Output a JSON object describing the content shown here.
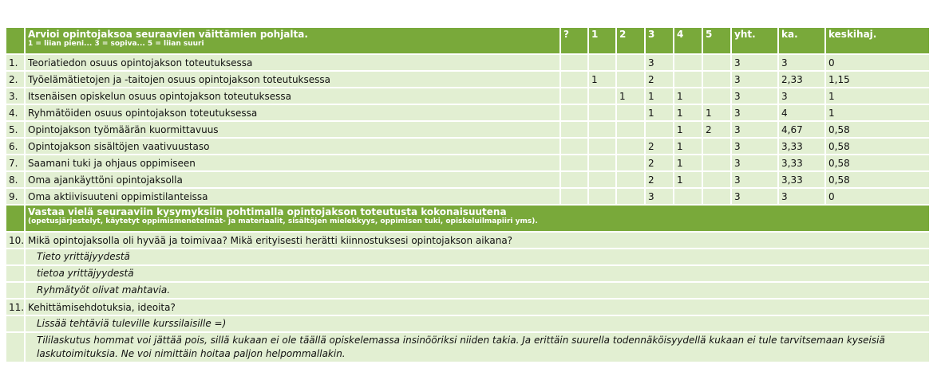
{
  "section1": {
    "title": "Arvioi opintojaksoa seuraavien väittämien pohjalta.",
    "subtitle": "1 = liian pieni... 3 = sopiva... 5 = liian suuri",
    "columns": [
      "?",
      "1",
      "2",
      "3",
      "4",
      "5",
      "yht.",
      "ka.",
      "keskihaj."
    ],
    "rows": [
      {
        "num": "1.",
        "text": "Teoriatiedon osuus opintojakson toteutuksessa",
        "cells": [
          null,
          null,
          null,
          "3",
          null,
          null,
          "3",
          "3",
          "0"
        ]
      },
      {
        "num": "2.",
        "text": "Työelämätietojen ja -taitojen osuus opintojakson toteutuksessa",
        "cells": [
          null,
          "1",
          null,
          "2",
          null,
          null,
          "3",
          "2,33",
          "1,15"
        ]
      },
      {
        "num": "3.",
        "text": "Itsenäisen opiskelun osuus opintojakson toteutuksessa",
        "cells": [
          null,
          null,
          "1",
          "1",
          "1",
          null,
          "3",
          "3",
          "1"
        ]
      },
      {
        "num": "4.",
        "text": "Ryhmätöiden osuus opintojakson toteutuksessa",
        "cells": [
          null,
          null,
          null,
          "1",
          "1",
          "1",
          "3",
          "4",
          "1"
        ]
      },
      {
        "num": "5.",
        "text": "Opintojakson työmäärän kuormittavuus",
        "cells": [
          null,
          null,
          null,
          null,
          "1",
          "2",
          "3",
          "4,67",
          "0,58"
        ]
      },
      {
        "num": "6.",
        "text": "Opintojakson sisältöjen vaativuustaso",
        "cells": [
          null,
          null,
          null,
          "2",
          "1",
          null,
          "3",
          "3,33",
          "0,58"
        ]
      },
      {
        "num": "7.",
        "text": "Saamani tuki ja ohjaus oppimiseen",
        "cells": [
          null,
          null,
          null,
          "2",
          "1",
          null,
          "3",
          "3,33",
          "0,58"
        ]
      },
      {
        "num": "8.",
        "text": "Oma ajankäyttöni opintojaksolla",
        "cells": [
          null,
          null,
          null,
          "2",
          "1",
          null,
          "3",
          "3,33",
          "0,58"
        ]
      },
      {
        "num": "9.",
        "text": "Oma aktiivisuuteni oppimistilanteissa",
        "cells": [
          null,
          null,
          null,
          "3",
          null,
          null,
          "3",
          "3",
          "0"
        ]
      }
    ]
  },
  "section2": {
    "title": "Vastaa vielä seuraaviin kysymyksiin pohtimalla opintojakson toteutusta kokonaisuutena",
    "subtitle": "(opetusjärjestelyt, käytetyt oppimismenetelmät- ja materiaalit, sisältöjen mielekkyys, oppimisen tuki, opiskeluilmapiiri yms).",
    "questions": [
      {
        "num": "10.",
        "text": "Mikä opintojaksolla oli hyvää ja toimivaa? Mikä erityisesti herätti kiinnostuksesi opintojakson aikana?",
        "answers": [
          "Tieto yrittäjyydestä",
          "tietoa yrittäjyydestä",
          "Ryhmätyöt olivat mahtavia."
        ]
      },
      {
        "num": "11.",
        "text": "Kehittämisehdotuksia, ideoita?",
        "answers": [
          "Lissää tehtäviä tuleville kurssilaisille =)",
          "Tililaskutus hommat voi jättää pois, sillä kukaan ei ole täällä opiskelemassa insinööriksi niiden takia. Ja erittäin suurella todennäköisyydellä kukaan ei tule tarvitsemaan kyseisiä laskutoimituksia. Ne voi nimittäin hoitaa paljon helpommallakin."
        ]
      }
    ]
  }
}
